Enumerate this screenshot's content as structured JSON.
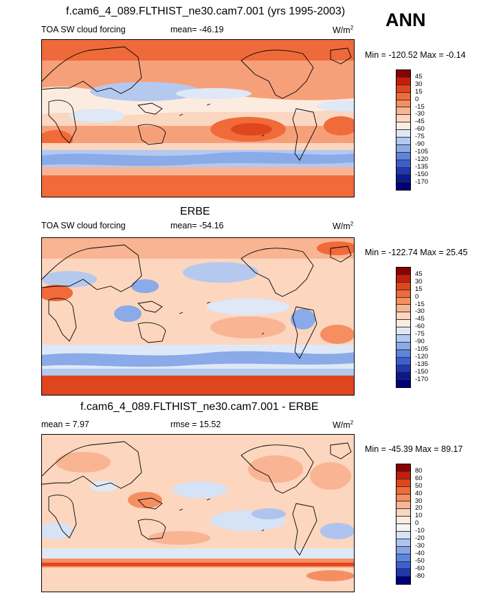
{
  "annual_label": "ANN",
  "panels": [
    {
      "title": "f.cam6_4_089.FLTHIST_ne30.cam7.001 (yrs 1995-2003)",
      "left_label": "TOA SW cloud forcing",
      "mid_label": "mean= -46.19",
      "units": "W/m",
      "units_sup": "2",
      "minmax": "Min = -120.52 Max =  -0.14",
      "levels": [
        "45",
        "30",
        "15",
        "0",
        "-15",
        "-30",
        "-45",
        "-60",
        "-75",
        "-90",
        "-105",
        "-120",
        "-135",
        "-150",
        "-170"
      ]
    },
    {
      "title": "ERBE",
      "left_label": "TOA SW cloud forcing",
      "mid_label": "mean= -54.16",
      "units": "W/m",
      "units_sup": "2",
      "minmax": "Min = -122.74 Max =  25.45",
      "levels": [
        "45",
        "30",
        "15",
        "0",
        "-15",
        "-30",
        "-45",
        "-60",
        "-75",
        "-90",
        "-105",
        "-120",
        "-135",
        "-150",
        "-170"
      ]
    },
    {
      "title": "f.cam6_4_089.FLTHIST_ne30.cam7.001 - ERBE",
      "left_label": "mean =   7.97",
      "mid_label": "rmse =  15.52",
      "units": "W/m",
      "units_sup": "2",
      "minmax": "Min = -45.39 Max =  89.17",
      "levels": [
        "80",
        "60",
        "50",
        "40",
        "30",
        "20",
        "10",
        "0",
        "-10",
        "-20",
        "-30",
        "-40",
        "-50",
        "-60",
        "-80"
      ]
    }
  ],
  "colors": {
    "abs_scale": [
      "#8b0000",
      "#c41e0a",
      "#e0461e",
      "#f06a3a",
      "#f58f62",
      "#f9b493",
      "#fcd6bf",
      "#fcece0",
      "#dfe8f6",
      "#b5c9ef",
      "#8aaae8",
      "#5d84dc",
      "#3c5fd0",
      "#2238b0",
      "#0b1a8a",
      "#00007a"
    ],
    "diff_scale": [
      "#8b0000",
      "#c41e0a",
      "#e0461e",
      "#f06a3a",
      "#f58f62",
      "#f9b493",
      "#fcd6bf",
      "#fcece0",
      "#f4f4f4",
      "#d6e2f6",
      "#aec4ee",
      "#86a4e6",
      "#5d84dc",
      "#3c5fd0",
      "#2238b0",
      "#00007a"
    ]
  }
}
